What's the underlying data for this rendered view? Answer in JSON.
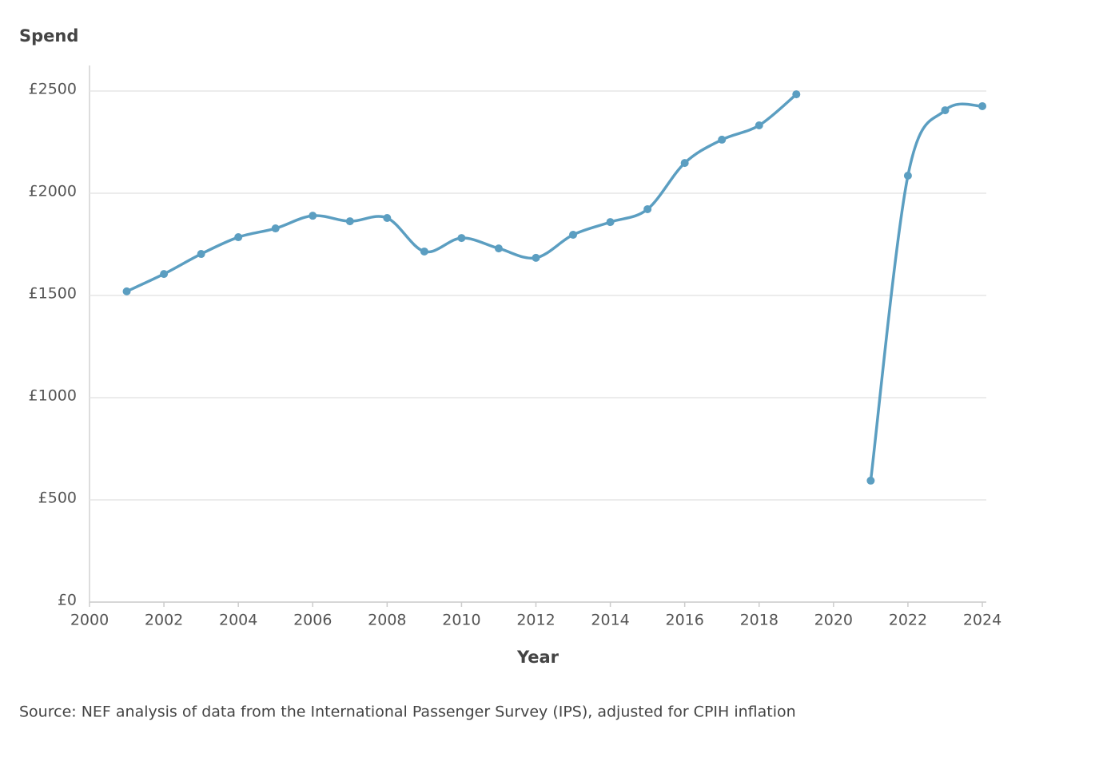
{
  "chart_data": {
    "type": "line",
    "ylabel": "Spend",
    "xlabel": "Year",
    "source": "Source: NEF analysis of data from the International Passenger Survey (IPS), adjusted for CPIH inflation",
    "x": [
      2001,
      2002,
      2003,
      2004,
      2005,
      2006,
      2007,
      2008,
      2009,
      2010,
      2011,
      2012,
      2013,
      2014,
      2015,
      2016,
      2017,
      2018,
      2019,
      2020,
      2021,
      2022,
      2023,
      2024
    ],
    "series": [
      {
        "name": "Spend",
        "color": "#5b9ec1",
        "values": [
          1520,
          1605,
          1703,
          1785,
          1828,
          1890,
          1863,
          1879,
          1715,
          1781,
          1730,
          1684,
          1797,
          1859,
          1922,
          2148,
          2262,
          2332,
          2484,
          null,
          594,
          2086,
          2406,
          2426
        ]
      }
    ],
    "xlim": [
      2000,
      2024
    ],
    "xticks": [
      2000,
      2002,
      2004,
      2006,
      2008,
      2010,
      2012,
      2014,
      2016,
      2018,
      2020,
      2022,
      2024
    ],
    "ylim": [
      0,
      2500
    ],
    "yticks": [
      {
        "value": 0,
        "label": "£0"
      },
      {
        "value": 500,
        "label": "£500"
      },
      {
        "value": 1000,
        "label": "£1000"
      },
      {
        "value": 1500,
        "label": "£1500"
      },
      {
        "value": 2000,
        "label": "£2000"
      },
      {
        "value": 2500,
        "label": "£2500"
      }
    ],
    "grid": true
  }
}
